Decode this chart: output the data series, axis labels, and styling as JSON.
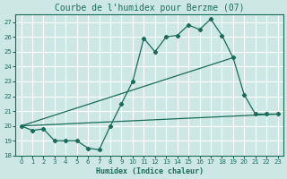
{
  "title": "Courbe de l'humidex pour Berzme (07)",
  "xlabel": "Humidex (Indice chaleur)",
  "background_color": "#cde8e4",
  "line_color": "#1a6b5a",
  "grid_color": "#ffffff",
  "x_values": [
    0,
    1,
    2,
    3,
    4,
    5,
    6,
    7,
    8,
    9,
    10,
    11,
    12,
    13,
    14,
    15,
    16,
    17,
    18,
    19,
    20,
    21,
    22,
    23
  ],
  "line1": [
    20.0,
    19.7,
    19.8,
    19.0,
    19.0,
    19.0,
    18.5,
    18.4,
    20.0,
    21.5,
    23.0,
    25.9,
    25.0,
    26.0,
    26.1,
    26.8,
    26.5,
    27.2,
    26.1,
    24.6,
    22.1,
    20.8,
    20.8,
    20.8
  ],
  "line2_x": [
    0,
    19
  ],
  "line2_y": [
    20.0,
    24.6
  ],
  "line3_x": [
    0,
    23
  ],
  "line3_y": [
    20.0,
    20.8
  ],
  "ylim": [
    18,
    27.5
  ],
  "xlim": [
    -0.5,
    23.5
  ],
  "yticks": [
    18,
    19,
    20,
    21,
    22,
    23,
    24,
    25,
    26,
    27
  ],
  "xticks": [
    0,
    1,
    2,
    3,
    4,
    5,
    6,
    7,
    8,
    9,
    10,
    11,
    12,
    13,
    14,
    15,
    16,
    17,
    18,
    19,
    20,
    21,
    22,
    23
  ],
  "title_fontsize": 7,
  "xlabel_fontsize": 6,
  "tick_labelsize": 5
}
